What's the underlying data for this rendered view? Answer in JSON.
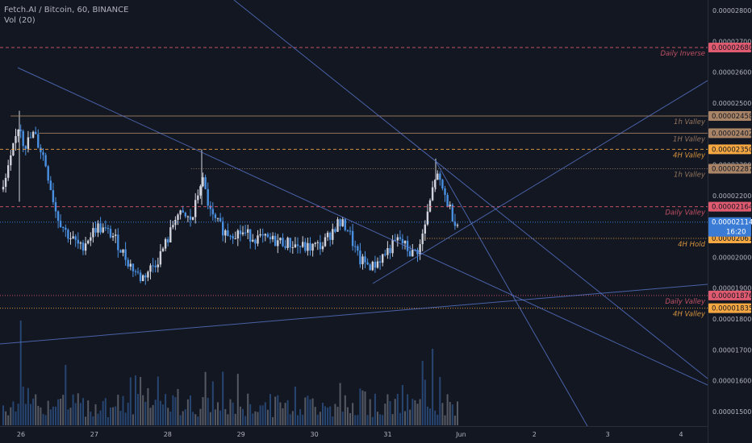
{
  "legend": {
    "symbol": "Fetch.AI / Bitcoin, 60, BINANCE",
    "indicator": "Vol (20)"
  },
  "colors": {
    "background": "#131722",
    "up_candle": "#d1d4dc",
    "down_candle": "#4a90e2",
    "trendline": "#5b7bd5",
    "daily_level": "#e05b6f",
    "4h_level": "#f5a742",
    "1h_level": "#a98467",
    "current_price": "#3a7bd5"
  },
  "chart_data": {
    "type": "candlestick",
    "title": "Fetch.AI / Bitcoin, 60, BINANCE",
    "y_axis": {
      "ticks": [
        "0.00002800",
        "0.00002700",
        "0.00002600",
        "0.00002500",
        "0.00002400",
        "0.00002300",
        "0.00002200",
        "0.00002100",
        "0.00002000",
        "0.00001900",
        "0.00001800",
        "0.00001700",
        "0.00001600",
        "0.00001500"
      ],
      "min": 1.47e-05,
      "max": 2.83e-05
    },
    "x_axis": {
      "ticks": [
        "26",
        "27",
        "28",
        "29",
        "30",
        "31",
        "Jun",
        "2",
        "3",
        "4"
      ]
    },
    "current_price": {
      "value": "0.00002114",
      "countdown": "16:20"
    },
    "levels": [
      {
        "name": "Daily Inverse",
        "price": 2.68e-05,
        "value": "0.00002680",
        "color": "#e05b6f",
        "label_color": "#e05b6f",
        "style": "dashed",
        "x_start": 0,
        "annotation": "Daily Inverse"
      },
      {
        "name": "1h Valley",
        "price": 2.458e-05,
        "value": "0.00002458",
        "color": "#a98467",
        "label_color": "#a98467",
        "style": "solid",
        "x_start": 0.015,
        "annotation": "1h Valley"
      },
      {
        "name": "1H Valley",
        "price": 2.402e-05,
        "value": "0.00002402",
        "color": "#a98467",
        "label_color": "#a98467",
        "style": "solid",
        "x_start": 0.055,
        "annotation": "1H Valley"
      },
      {
        "name": "4H Valley",
        "price": 2.35e-05,
        "value": "0.00002350",
        "color": "#f5a742",
        "label_color": "#f5a742",
        "style": "dashed",
        "x_start": 0,
        "annotation": "4H Valley"
      },
      {
        "name": "1h Valley",
        "price": 2.287e-05,
        "value": "0.00002287",
        "color": "#a98467",
        "label_color": "#a98467",
        "style": "dotted",
        "x_start": 0.27,
        "annotation": "1h Valley"
      },
      {
        "name": "Daily Valley",
        "price": 2.164e-05,
        "value": "0.00002164",
        "color": "#e05b6f",
        "label_color": "#e05b6f",
        "style": "dashed",
        "x_start": 0,
        "annotation": "Daily Valley"
      },
      {
        "name": "4H Hold",
        "price": 2.061e-05,
        "value": "0.00002061",
        "color": "#f5a742",
        "label_color": "#f5a742",
        "style": "dotted",
        "x_start": 0.6,
        "annotation": "4H Hold"
      },
      {
        "name": "Daily Valley",
        "price": 1.876e-05,
        "value": "0.00001876",
        "color": "#e05b6f",
        "label_color": "#e05b6f",
        "style": "dotted",
        "x_start": 0,
        "annotation": "Daily Valley"
      },
      {
        "name": "4H Valley",
        "price": 1.835e-05,
        "value": "0.00001835",
        "color": "#f5a742",
        "label_color": "#f5a742",
        "style": "dotted",
        "x_start": 0,
        "annotation": "4H Valley"
      }
    ],
    "volume_scale": 1.0
  }
}
